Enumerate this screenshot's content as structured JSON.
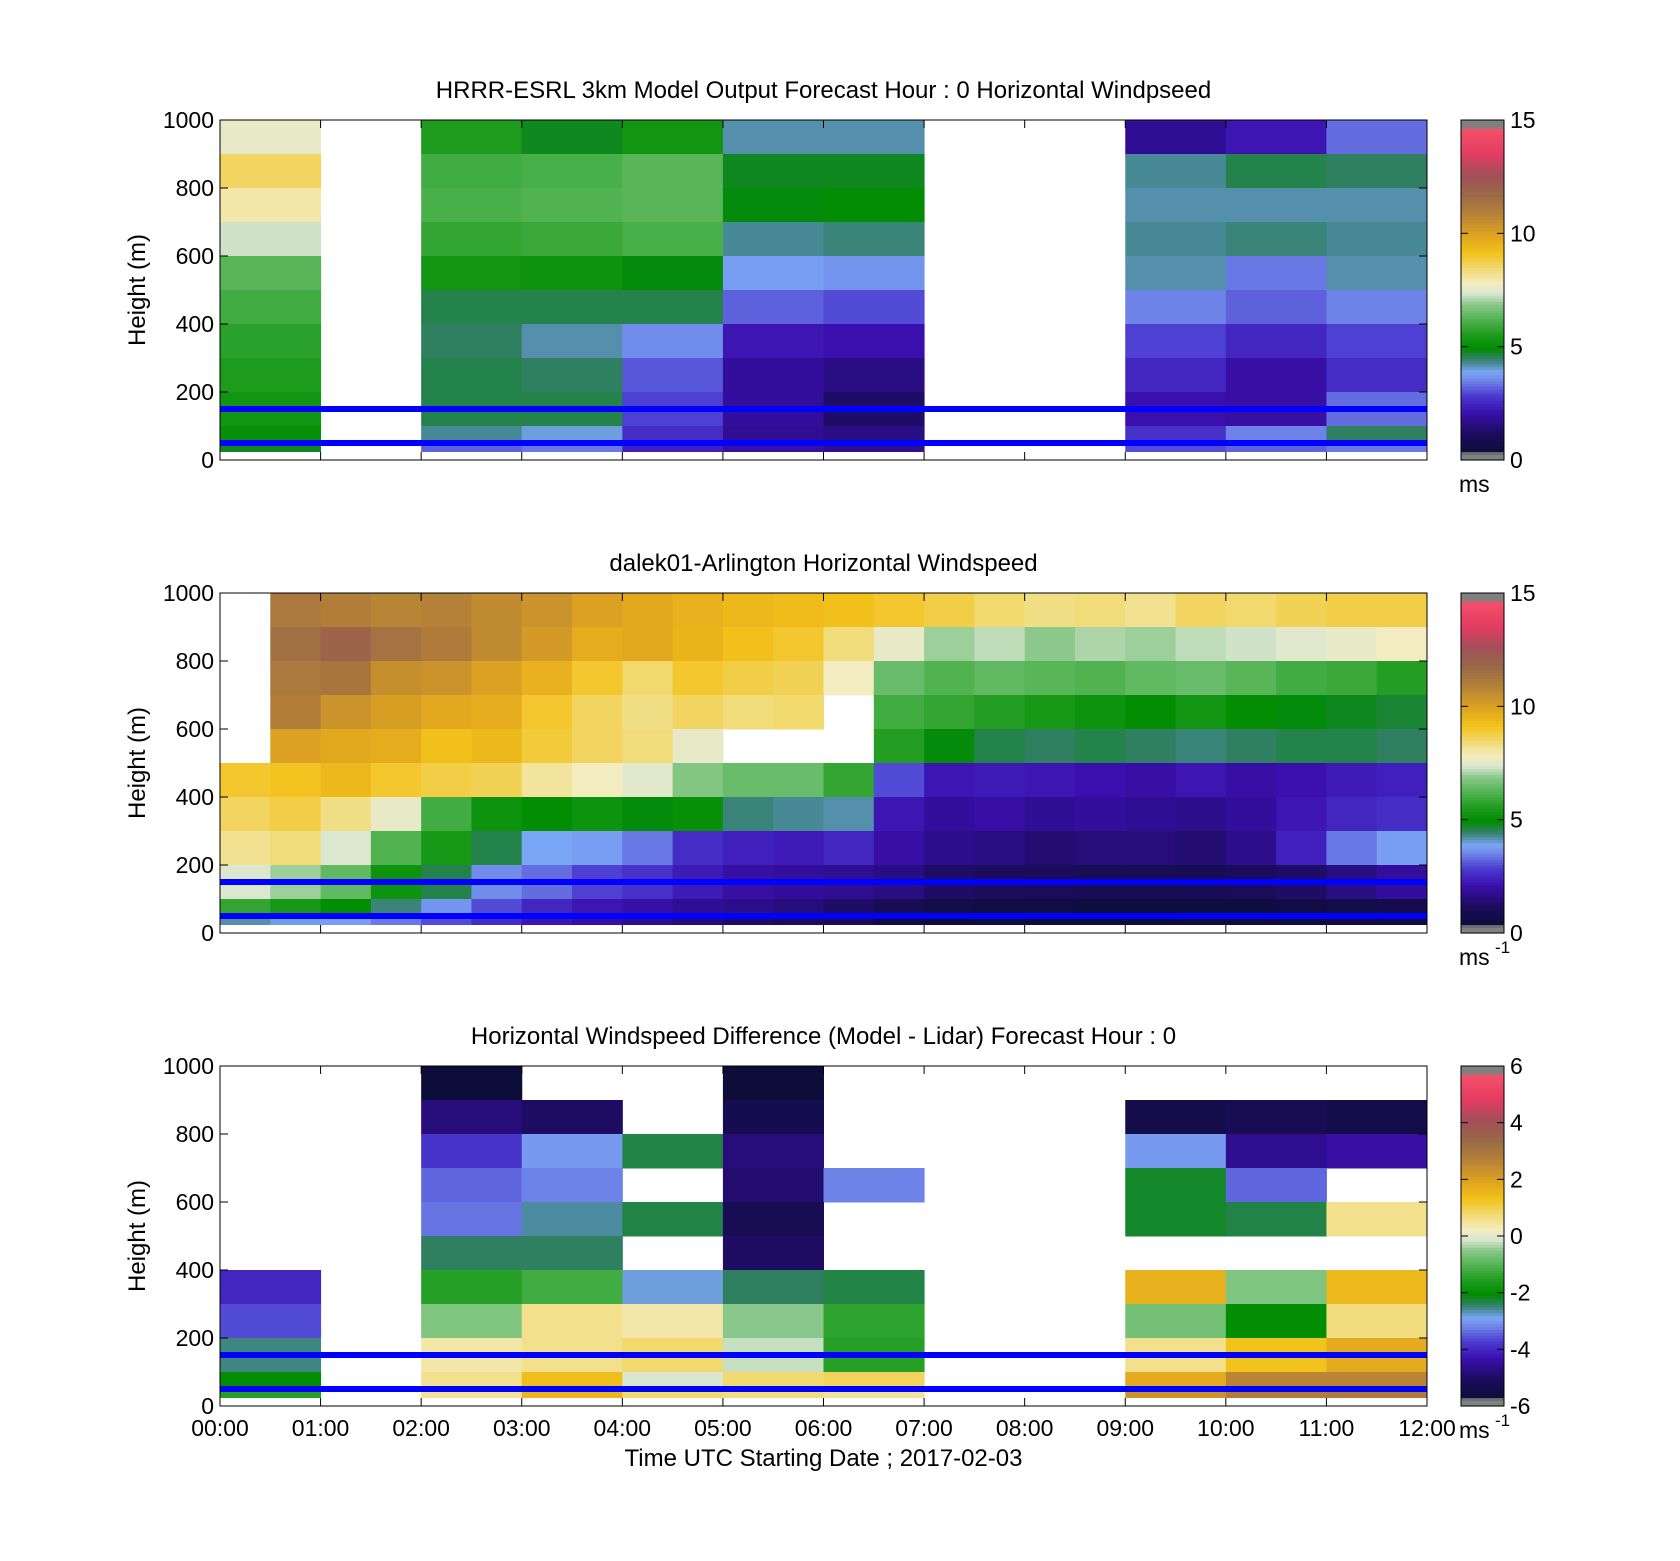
{
  "colors": {
    "lidar_heights": "#0000ff",
    "missing": "#808080",
    "background": "#ffffff"
  },
  "x_tick_labels": [
    "00:00",
    "01:00",
    "02:00",
    "03:00",
    "04:00",
    "05:00",
    "06:00",
    "07:00",
    "08:00",
    "09:00",
    "10:00",
    "11:00",
    "12:00"
  ],
  "x_axis_label": "Time UTC  Starting Date ; 2017-02-03",
  "y_tick_labels": [
    "0",
    "200",
    "400",
    "600",
    "800",
    "1000"
  ],
  "y_axis_label": "Height (m)",
  "chart_data": [
    {
      "type": "heatmap",
      "title": "HRRR-ESRL 3km Model Output   Forecast Hour : 0 Horizontal Windpseed",
      "ylabel": "Height (m)",
      "xlim": [
        "00:00",
        "12:00"
      ],
      "ylim": [
        0,
        1000
      ],
      "colorbar": {
        "min": 0,
        "max": 15,
        "ticks": [
          0,
          5,
          10,
          15
        ],
        "unit_base": "ms",
        "unit_sup": ""
      },
      "reference_lines_m": [
        150,
        50
      ],
      "x_hours": [
        0,
        1,
        2,
        3,
        4,
        5,
        6,
        7,
        8,
        9,
        10,
        11
      ],
      "y_levels_m": [
        1000,
        900,
        800,
        700,
        600,
        500,
        400,
        300,
        200,
        100,
        50
      ],
      "values": [
        [
          7.6,
          null,
          5.5,
          4.8,
          5.3,
          4.2,
          4.2,
          null,
          null,
          1.8,
          2.2,
          3.3
        ],
        [
          8.6,
          null,
          6.0,
          6.1,
          6.3,
          4.8,
          4.8,
          null,
          null,
          4.3,
          4.6,
          4.5
        ],
        [
          8.0,
          null,
          6.1,
          6.2,
          6.3,
          4.9,
          5.0,
          null,
          null,
          4.2,
          4.2,
          4.2
        ],
        [
          7.3,
          null,
          5.8,
          5.9,
          6.1,
          4.3,
          4.4,
          null,
          null,
          4.3,
          4.4,
          4.3
        ],
        [
          6.3,
          null,
          5.3,
          5.2,
          4.9,
          3.8,
          3.7,
          null,
          null,
          4.2,
          3.4,
          4.2
        ],
        [
          6.0,
          null,
          4.6,
          4.6,
          4.6,
          3.2,
          3.0,
          null,
          null,
          3.5,
          3.2,
          3.5
        ],
        [
          5.7,
          null,
          4.5,
          4.2,
          3.6,
          2.2,
          2.1,
          null,
          null,
          2.9,
          2.5,
          2.9
        ],
        [
          5.5,
          null,
          4.6,
          4.5,
          3.1,
          1.9,
          1.6,
          null,
          null,
          2.5,
          2.0,
          2.6
        ],
        [
          5.3,
          null,
          4.6,
          4.6,
          2.9,
          1.9,
          1.3,
          null,
          null,
          2.1,
          2.0,
          3.3
        ],
        [
          5.1,
          null,
          4.3,
          4.0,
          2.6,
          1.8,
          1.6,
          null,
          null,
          2.7,
          3.5,
          4.5
        ],
        [
          4.8,
          null,
          3.2,
          3.4,
          2.4,
          2.0,
          1.8,
          null,
          null,
          3.0,
          3.2,
          3.4
        ]
      ]
    },
    {
      "type": "heatmap",
      "title": "dalek01-Arlington  Horizontal Windspeed",
      "ylabel": "Height (m)",
      "xlim": [
        "00:00",
        "12:00"
      ],
      "ylim": [
        0,
        1000
      ],
      "colorbar": {
        "min": 0,
        "max": 15,
        "ticks": [
          0,
          5,
          10,
          15
        ],
        "unit_base": "ms",
        "unit_sup": "-1"
      },
      "reference_lines_m": [
        150,
        50
      ],
      "x_hours": [
        0,
        0.5,
        1,
        1.5,
        2,
        2.5,
        3,
        3.5,
        4,
        4.5,
        5,
        5.5,
        6,
        6.5,
        7,
        7.5,
        8,
        8.5,
        9,
        9.5,
        10,
        10.5,
        11,
        11.5
      ],
      "y_levels_m": [
        1000,
        900,
        800,
        700,
        600,
        500,
        400,
        300,
        200,
        100,
        50
      ],
      "values": [
        [
          null,
          11.2,
          11.0,
          10.8,
          10.9,
          10.6,
          10.4,
          10.0,
          9.8,
          9.6,
          9.4,
          9.3,
          9.2,
          9.0,
          8.8,
          8.5,
          8.3,
          8.4,
          8.2,
          8.6,
          8.5,
          8.7,
          8.8,
          8.8
        ],
        [
          null,
          11.5,
          11.9,
          11.4,
          11.1,
          10.6,
          10.2,
          9.7,
          9.8,
          9.5,
          9.2,
          9.0,
          8.4,
          7.6,
          7.0,
          7.2,
          6.9,
          7.1,
          7.0,
          7.2,
          7.3,
          7.5,
          7.6,
          7.8
        ],
        [
          null,
          11.2,
          11.3,
          10.5,
          10.4,
          10.0,
          9.6,
          9.0,
          8.5,
          9.0,
          8.8,
          8.7,
          7.8,
          6.5,
          6.2,
          6.4,
          6.3,
          6.2,
          6.4,
          6.5,
          6.3,
          6.0,
          5.9,
          5.6
        ],
        [
          null,
          11.0,
          10.4,
          10.1,
          9.8,
          9.7,
          9.0,
          8.6,
          8.3,
          8.6,
          8.4,
          8.5,
          null,
          6.0,
          5.8,
          5.6,
          5.4,
          5.2,
          5.0,
          5.3,
          5.0,
          4.9,
          4.8,
          4.7
        ],
        [
          null,
          10.0,
          9.8,
          9.7,
          9.2,
          9.4,
          8.9,
          8.6,
          8.4,
          7.6,
          null,
          null,
          null,
          5.6,
          4.9,
          4.6,
          4.5,
          4.6,
          4.5,
          4.4,
          4.5,
          4.6,
          4.6,
          4.5
        ],
        [
          9.0,
          9.1,
          9.4,
          9.0,
          8.8,
          8.7,
          8.1,
          7.8,
          7.5,
          6.8,
          6.5,
          6.5,
          5.8,
          3.0,
          2.2,
          2.3,
          2.2,
          2.1,
          2.0,
          2.2,
          2.0,
          2.1,
          2.3,
          2.4
        ],
        [
          8.6,
          8.8,
          8.3,
          7.6,
          6.0,
          5.2,
          5.0,
          5.2,
          4.9,
          5.1,
          4.4,
          4.3,
          4.2,
          2.2,
          1.9,
          2.0,
          1.8,
          1.9,
          1.8,
          1.7,
          1.9,
          2.2,
          2.5,
          2.6
        ],
        [
          8.2,
          8.4,
          7.4,
          6.2,
          5.4,
          4.6,
          3.9,
          3.8,
          3.4,
          2.6,
          2.4,
          2.3,
          2.5,
          2.0,
          1.7,
          1.6,
          1.4,
          1.5,
          1.5,
          1.4,
          1.7,
          2.4,
          3.4,
          3.8
        ],
        [
          7.4,
          7.0,
          6.4,
          5.2,
          4.6,
          3.6,
          3.3,
          2.9,
          2.7,
          2.3,
          2.0,
          1.9,
          1.8,
          1.6,
          1.3,
          1.2,
          1.1,
          1.0,
          1.0,
          1.0,
          1.1,
          1.3,
          1.6,
          1.9
        ],
        [
          5.8,
          5.4,
          5.0,
          4.4,
          3.7,
          3.0,
          2.5,
          2.2,
          2.0,
          1.8,
          1.7,
          1.5,
          1.3,
          1.0,
          0.7,
          0.6,
          0.6,
          0.5,
          0.5,
          0.5,
          0.5,
          0.6,
          0.7,
          0.8
        ],
        [
          4.2,
          4.0,
          3.8,
          3.4,
          3.0,
          2.6,
          2.2,
          2.0,
          1.8,
          1.5,
          1.3,
          1.2,
          1.0,
          0.6,
          0.4,
          0.5,
          0.4,
          0.4,
          0.4,
          0.5,
          0.5,
          0.5,
          0.6,
          0.6
        ]
      ]
    },
    {
      "type": "heatmap",
      "title": "Horizontal Windspeed Difference (Model - Lidar) Forecast Hour : 0",
      "ylabel": "Height (m)",
      "xlabel": "Time UTC  Starting Date ; 2017-02-03",
      "xlim": [
        "00:00",
        "12:00"
      ],
      "ylim": [
        0,
        1000
      ],
      "colorbar": {
        "min": -6,
        "max": 6,
        "ticks": [
          -6,
          -4,
          -2,
          0,
          2,
          4,
          6
        ],
        "unit_base": "ms",
        "unit_sup": "-1"
      },
      "reference_lines_m": [
        150,
        50
      ],
      "x_hours": [
        0,
        1,
        2,
        3,
        4,
        5,
        6,
        7,
        8,
        9,
        10,
        11
      ],
      "y_levels_m": [
        1000,
        900,
        800,
        700,
        600,
        500,
        400,
        300,
        200,
        100,
        50
      ],
      "values": [
        [
          null,
          null,
          -5.7,
          null,
          null,
          -5.7,
          null,
          null,
          null,
          null,
          null,
          null
        ],
        [
          null,
          null,
          -4.8,
          -5.0,
          null,
          -5.3,
          null,
          null,
          null,
          -5.4,
          -5.2,
          -5.4
        ],
        [
          null,
          null,
          -3.8,
          -3.0,
          -2.3,
          -4.8,
          null,
          null,
          null,
          -3.0,
          -4.6,
          -4.4
        ],
        [
          null,
          null,
          -3.4,
          -3.2,
          null,
          -4.9,
          -3.2,
          null,
          null,
          -2.2,
          -3.4,
          null
        ],
        [
          null,
          null,
          -3.3,
          -2.6,
          -2.3,
          -5.2,
          null,
          null,
          null,
          -2.2,
          -2.3,
          0.6
        ],
        [
          null,
          null,
          -2.4,
          -2.4,
          null,
          -5.0,
          null,
          null,
          null,
          null,
          null,
          null
        ],
        [
          -4.0,
          null,
          -1.5,
          -1.2,
          -2.8,
          -2.4,
          -2.3,
          null,
          null,
          1.7,
          -0.6,
          1.5
        ],
        [
          -3.6,
          null,
          -0.6,
          0.6,
          0.4,
          -0.5,
          -1.4,
          null,
          null,
          -0.7,
          -2.0,
          0.7
        ],
        [
          -2.5,
          null,
          0.4,
          0.6,
          0.8,
          -0.2,
          -1.5,
          null,
          null,
          0.6,
          1.3,
          1.8
        ],
        [
          -2.0,
          null,
          0.6,
          1.4,
          -0.1,
          0.8,
          0.9,
          null,
          null,
          1.8,
          2.6,
          2.6
        ],
        [
          -1.5,
          null,
          0.5,
          1.6,
          0.8,
          0.7,
          0.5,
          null,
          null,
          2.3,
          2.8,
          2.9
        ]
      ]
    }
  ]
}
